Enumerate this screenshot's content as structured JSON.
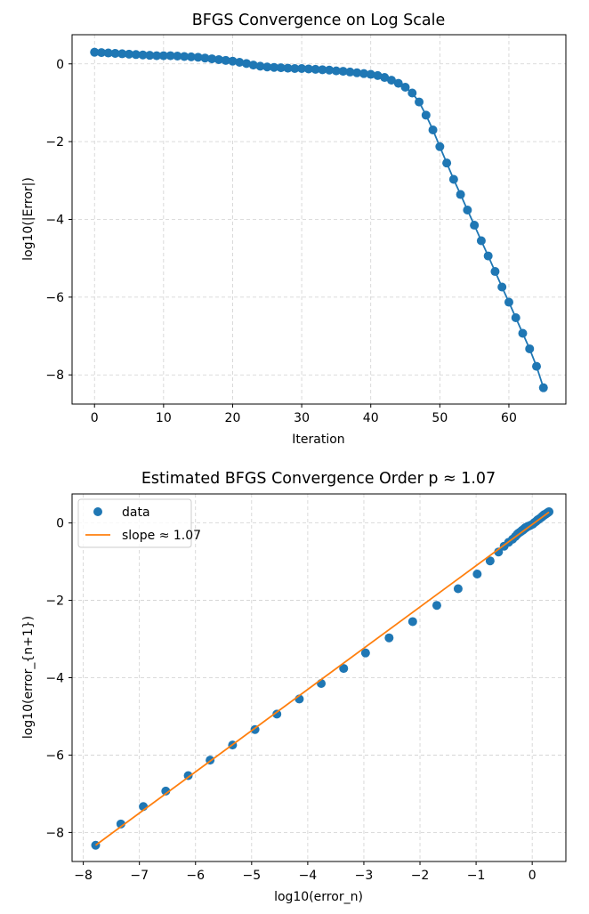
{
  "chart_data": [
    {
      "type": "line",
      "title": "BFGS Convergence on Log Scale",
      "xlabel": "Iteration",
      "ylabel": "log10(|Error|)",
      "xlim": [
        -3.25,
        68.25
      ],
      "ylim": [
        -8.75,
        0.75
      ],
      "xticks": [
        0,
        10,
        20,
        30,
        40,
        50,
        60
      ],
      "xtick_labels": [
        "0",
        "10",
        "20",
        "30",
        "40",
        "50",
        "60"
      ],
      "yticks": [
        0,
        -2,
        -4,
        -6,
        -8
      ],
      "ytick_labels": [
        "0",
        "−2",
        "−4",
        "−6",
        "−8"
      ],
      "grid": true,
      "series": [
        {
          "name": "log10(|Error|)",
          "color": "#1f77b4",
          "marker": "o",
          "x": [
            0,
            1,
            2,
            3,
            4,
            5,
            6,
            7,
            8,
            9,
            10,
            11,
            12,
            13,
            14,
            15,
            16,
            17,
            18,
            19,
            20,
            21,
            22,
            23,
            24,
            25,
            26,
            27,
            28,
            29,
            30,
            31,
            32,
            33,
            34,
            35,
            36,
            37,
            38,
            39,
            40,
            41,
            42,
            43,
            44,
            45,
            46,
            47,
            48,
            49,
            50,
            51,
            52,
            53,
            54,
            55,
            56,
            57,
            58,
            59,
            60,
            61,
            62,
            63,
            64,
            65
          ],
          "y": [
            0.3,
            0.29,
            0.28,
            0.27,
            0.26,
            0.25,
            0.24,
            0.23,
            0.22,
            0.21,
            0.21,
            0.21,
            0.2,
            0.19,
            0.18,
            0.17,
            0.15,
            0.13,
            0.11,
            0.09,
            0.07,
            0.04,
            0.01,
            -0.03,
            -0.06,
            -0.08,
            -0.09,
            -0.1,
            -0.11,
            -0.12,
            -0.12,
            -0.13,
            -0.14,
            -0.15,
            -0.16,
            -0.18,
            -0.19,
            -0.21,
            -0.23,
            -0.25,
            -0.27,
            -0.3,
            -0.35,
            -0.42,
            -0.5,
            -0.6,
            -0.75,
            -0.98,
            -1.32,
            -1.7,
            -2.13,
            -2.55,
            -2.97,
            -3.36,
            -3.76,
            -4.15,
            -4.55,
            -4.94,
            -5.34,
            -5.74,
            -6.13,
            -6.53,
            -6.93,
            -7.33,
            -7.78,
            -8.33
          ]
        }
      ]
    },
    {
      "type": "scatter",
      "title": "Estimated BFGS Convergence Order p ≈ 1.07",
      "xlabel": "log10(error_n)",
      "ylabel": "log10(error_{n+1})",
      "xlim": [
        -8.2,
        0.6
      ],
      "ylim": [
        -8.75,
        0.75
      ],
      "xticks": [
        -8,
        -7,
        -6,
        -5,
        -4,
        -3,
        -2,
        -1,
        0
      ],
      "xtick_labels": [
        "−8",
        "−7",
        "−6",
        "−5",
        "−4",
        "−3",
        "−2",
        "−1",
        "0"
      ],
      "yticks": [
        0,
        -2,
        -4,
        -6,
        -8
      ],
      "ytick_labels": [
        "0",
        "−2",
        "−4",
        "−6",
        "−8"
      ],
      "grid": true,
      "legend_position": "top-left",
      "series": [
        {
          "name": "data",
          "kind": "scatter",
          "color": "#1f77b4",
          "x": [
            -7.78,
            -7.33,
            -6.93,
            -6.53,
            -6.13,
            -5.74,
            -5.34,
            -4.94,
            -4.55,
            -4.15,
            -3.76,
            -3.36,
            -2.97,
            -2.55,
            -2.13,
            -1.7,
            -1.32,
            -0.98,
            -0.75,
            -0.6,
            -0.5,
            -0.42,
            -0.35,
            -0.3,
            -0.27,
            -0.25,
            -0.23,
            -0.21,
            -0.19,
            -0.18,
            -0.16,
            -0.15,
            -0.14,
            -0.13,
            -0.12,
            -0.12,
            -0.11,
            -0.1,
            -0.09,
            -0.08,
            -0.06,
            -0.03,
            0.01,
            0.04,
            0.07,
            0.09,
            0.11,
            0.13,
            0.15,
            0.17,
            0.18,
            0.19,
            0.2,
            0.21,
            0.21,
            0.21,
            0.22,
            0.23,
            0.24,
            0.25,
            0.26,
            0.27,
            0.28,
            0.29,
            0.3
          ],
          "y": [
            -8.33,
            -7.78,
            -7.33,
            -6.93,
            -6.53,
            -6.13,
            -5.74,
            -5.34,
            -4.94,
            -4.55,
            -4.15,
            -3.76,
            -3.36,
            -2.97,
            -2.55,
            -2.13,
            -1.7,
            -1.32,
            -0.98,
            -0.75,
            -0.6,
            -0.5,
            -0.42,
            -0.35,
            -0.3,
            -0.27,
            -0.25,
            -0.23,
            -0.21,
            -0.19,
            -0.18,
            -0.16,
            -0.15,
            -0.14,
            -0.13,
            -0.12,
            -0.12,
            -0.11,
            -0.1,
            -0.09,
            -0.08,
            -0.06,
            -0.03,
            0.01,
            0.04,
            0.07,
            0.09,
            0.11,
            0.13,
            0.15,
            0.17,
            0.18,
            0.19,
            0.2,
            0.21,
            0.21,
            0.21,
            0.22,
            0.23,
            0.24,
            0.25,
            0.26,
            0.27,
            0.28,
            0.29
          ]
        },
        {
          "name": "slope ≈ 1.07",
          "kind": "line",
          "color": "#ff7f0e",
          "x": [
            -7.78,
            0.3
          ],
          "y": [
            -8.33,
            0.28
          ]
        }
      ]
    }
  ]
}
